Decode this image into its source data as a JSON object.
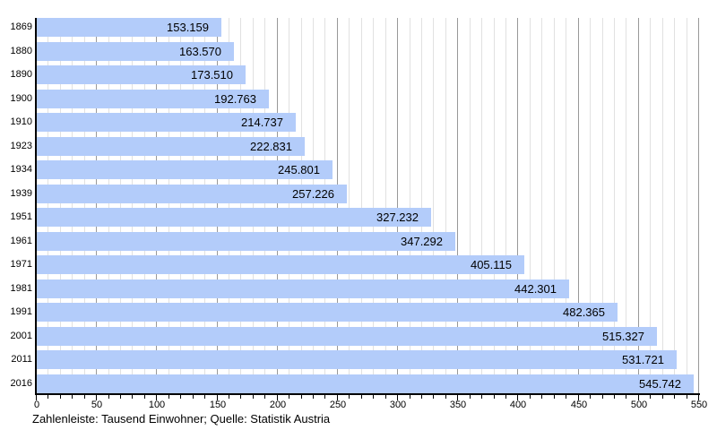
{
  "chart_data": {
    "type": "bar",
    "orientation": "horizontal",
    "title": "",
    "categories": [
      "1869",
      "1880",
      "1890",
      "1900",
      "1910",
      "1923",
      "1934",
      "1939",
      "1951",
      "1961",
      "1971",
      "1981",
      "1991",
      "2001",
      "2011",
      "2016"
    ],
    "values": [
      153.159,
      163.57,
      173.51,
      192.763,
      214.737,
      222.831,
      245.801,
      257.226,
      327.232,
      347.292,
      405.115,
      442.301,
      482.365,
      515.327,
      531.721,
      545.742
    ],
    "value_labels": [
      "153.159",
      "163.570",
      "173.510",
      "192.763",
      "214.737",
      "222.831",
      "245.801",
      "257.226",
      "327.232",
      "347.292",
      "405.115",
      "442.301",
      "482.365",
      "515.327",
      "531.721",
      "545.742"
    ],
    "unit": "Tausend Einwohner",
    "source": "Statistik Austria",
    "caption": "Zahlenleiste: Tausend Einwohner; Quelle: Statistik Austria",
    "xaxis": {
      "min": 0,
      "max": 550,
      "minor_step": 10,
      "major_step": 50,
      "tick_labels": [
        "0",
        "50",
        "100",
        "150",
        "200",
        "250",
        "300",
        "350",
        "400",
        "450",
        "500",
        "550"
      ]
    },
    "grid": "on",
    "legend": "none"
  },
  "colors": {
    "bar_fill": "#b3ccfa",
    "grid_minor": "#e1e1e1",
    "grid_major": "#999999",
    "axis": "#000000",
    "text": "#000000",
    "background": "#ffffff"
  }
}
